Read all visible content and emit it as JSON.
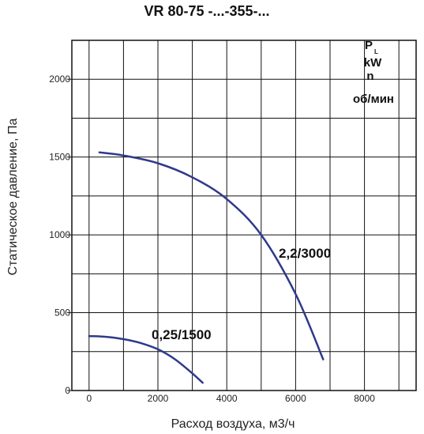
{
  "chart_data": {
    "type": "line",
    "title": "VR 80-75 -...-355-...",
    "xlabel": "Расход воздуха, м3/ч",
    "ylabel": "Статическое давление, Па",
    "xlim": [
      -500,
      9500
    ],
    "ylim": [
      0,
      2250
    ],
    "x_ticks": [
      0,
      2000,
      4000,
      6000,
      8000
    ],
    "y_ticks": [
      0,
      500,
      1000,
      1500,
      2000
    ],
    "grid": true,
    "legend_header": {
      "pl": "P",
      "pl_sub": "L",
      "kw": "kW",
      "n": "n",
      "unit": "об/мин"
    },
    "line_color": "#2e3a8c",
    "series": [
      {
        "name": "2,2/3000",
        "x": [
          300,
          1000,
          2000,
          3000,
          4000,
          5000,
          6000,
          6800
        ],
        "y": [
          1530,
          1510,
          1460,
          1370,
          1230,
          1000,
          620,
          200
        ]
      },
      {
        "name": "0,25/1500",
        "x": [
          0,
          500,
          1000,
          1500,
          2000,
          2500,
          3000,
          3300
        ],
        "y": [
          350,
          345,
          330,
          305,
          265,
          200,
          110,
          50
        ]
      }
    ]
  }
}
